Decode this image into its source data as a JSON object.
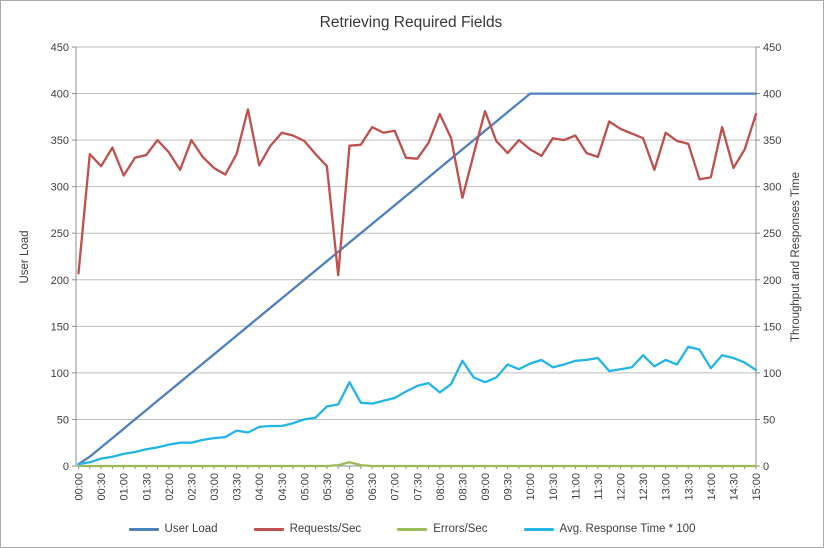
{
  "chart_data": {
    "type": "line",
    "title": "Retrieving Required Fields",
    "xlabel": "",
    "ylabel_left": "User Load",
    "ylabel_right": "Throughput and Responses Time",
    "ylim": [
      0,
      450
    ],
    "y_tick_step": 50,
    "y_tick_labels": [
      0,
      50,
      100,
      150,
      200,
      250,
      300,
      350,
      400,
      450
    ],
    "x_interval_minutes": 15,
    "x_tick_labels": [
      "00:00",
      "00:30",
      "01:00",
      "01:30",
      "02:00",
      "02:30",
      "03:00",
      "03:30",
      "04:00",
      "04:30",
      "05:00",
      "05:30",
      "06:00",
      "06:30",
      "07:00",
      "07:30",
      "08:00",
      "08:30",
      "09:00",
      "09:30",
      "10:00",
      "10:30",
      "11:00",
      "11:30",
      "12:00",
      "12:30",
      "13:00",
      "13:30",
      "14:00",
      "14:30",
      "15:00"
    ],
    "grid": true,
    "legend_position": "bottom",
    "series": [
      {
        "name": "User Load",
        "color": "#4F81BD",
        "axis": "left",
        "values": [
          2,
          10,
          20,
          30,
          40,
          50,
          60,
          70,
          80,
          90,
          100,
          110,
          120,
          130,
          140,
          150,
          160,
          170,
          180,
          190,
          200,
          210,
          220,
          230,
          240,
          250,
          260,
          270,
          280,
          290,
          300,
          310,
          320,
          330,
          340,
          350,
          360,
          370,
          380,
          390,
          400,
          400,
          400,
          400,
          400,
          400,
          400,
          400,
          400,
          400,
          400,
          400,
          400,
          400,
          400,
          400,
          400,
          400,
          400,
          400,
          400
        ]
      },
      {
        "name": "Requests/Sec",
        "color": "#C0504D",
        "axis": "right",
        "values": [
          207,
          335,
          322,
          342,
          312,
          331,
          334,
          350,
          337,
          318,
          350,
          332,
          320,
          313,
          335,
          383,
          323,
          344,
          358,
          355,
          349,
          335,
          322,
          205,
          344,
          345,
          364,
          358,
          360,
          331,
          330,
          347,
          378,
          352,
          288,
          335,
          381,
          349,
          336,
          350,
          340,
          333,
          352,
          350,
          355,
          336,
          332,
          370,
          362,
          357,
          352,
          318,
          358,
          349,
          346,
          308,
          310,
          364,
          320,
          340,
          378
        ]
      },
      {
        "name": "Errors/Sec",
        "color": "#9BBB59",
        "axis": "right",
        "values": [
          0,
          0,
          0,
          0,
          0,
          0,
          0,
          0,
          0,
          0,
          0,
          0,
          0,
          0,
          0,
          0,
          0,
          0,
          0,
          0,
          0,
          0,
          0,
          1,
          4,
          1,
          0,
          0,
          0,
          0,
          0,
          0,
          0,
          0,
          0,
          0,
          0,
          0,
          0,
          0,
          0,
          0,
          0,
          0,
          0,
          0,
          0,
          0,
          0,
          0,
          0,
          0,
          0,
          0,
          0,
          0,
          0,
          0,
          0,
          0,
          0
        ]
      },
      {
        "name": "Avg. Response Time * 100",
        "color": "#23B4E8",
        "axis": "right",
        "values": [
          2,
          4,
          8,
          10,
          13,
          15,
          18,
          20,
          23,
          25,
          25,
          28,
          30,
          31,
          38,
          36,
          42,
          43,
          43,
          46,
          50,
          52,
          64,
          66,
          90,
          68,
          67,
          70,
          73,
          80,
          86,
          89,
          79,
          88,
          113,
          95,
          90,
          95,
          109,
          104,
          110,
          114,
          106,
          109,
          113,
          114,
          116,
          102,
          104,
          106,
          119,
          107,
          114,
          109,
          128,
          125,
          105,
          119,
          116,
          111,
          103
        ]
      }
    ]
  },
  "colors": {
    "grid": "#BEBEBE",
    "axis": "#8C8C8C",
    "tick_text": "#3F3F3F",
    "title_text": "#383838",
    "border": "#A9A9A9",
    "background": "#FFFFFF"
  }
}
